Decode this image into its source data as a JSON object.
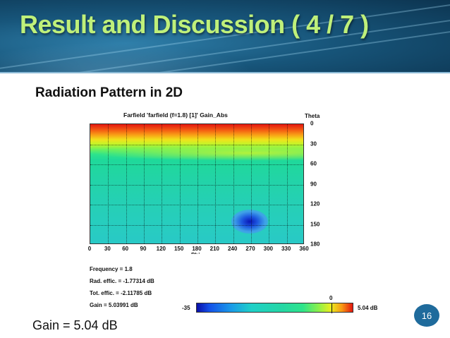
{
  "slide": {
    "title": "Result and Discussion ( 4 / 7 )",
    "subtitle": "Radiation Pattern in 2D",
    "gain_text": "Gain = 5.04 dB",
    "page_number": "16",
    "colors": {
      "title": "#bff07a",
      "header_bg": "#17557a",
      "badge": "#1f6b9c"
    }
  },
  "figure": {
    "plot_title": "Farfield 'farfield (f=1.8) [1]' Gain_Abs",
    "x_axis_label": "Phi",
    "x_ticks": [
      "0",
      "30",
      "60",
      "90",
      "120",
      "150",
      "180",
      "210",
      "240",
      "270",
      "300",
      "330",
      "360"
    ],
    "right_axis_title": "Theta",
    "theta_ticks": [
      "0",
      "30",
      "60",
      "90",
      "120",
      "150",
      "180"
    ],
    "legend": {
      "frequency": "Frequency = 1.8",
      "rad_effic": "Rad. effic. = -1.77314 dB",
      "tot_effic": "Tot. effic. = -2.11785 dB",
      "gain": "Gain      = 5.03991 dB"
    },
    "colorbar": {
      "min_label": "-35",
      "zero_label": "0",
      "max_label": "5.04 dB"
    }
  },
  "chart_data": {
    "type": "heatmap",
    "title": "Farfield 'farfield (f=1.8) [1]' Gain_Abs",
    "xlabel": "Phi",
    "ylabel": "Theta",
    "xlim": [
      0,
      360
    ],
    "ylim": [
      0,
      180
    ],
    "grid": true,
    "colorbar_range": [
      -35,
      5.04
    ],
    "colorbar_unit": "dB"
  }
}
